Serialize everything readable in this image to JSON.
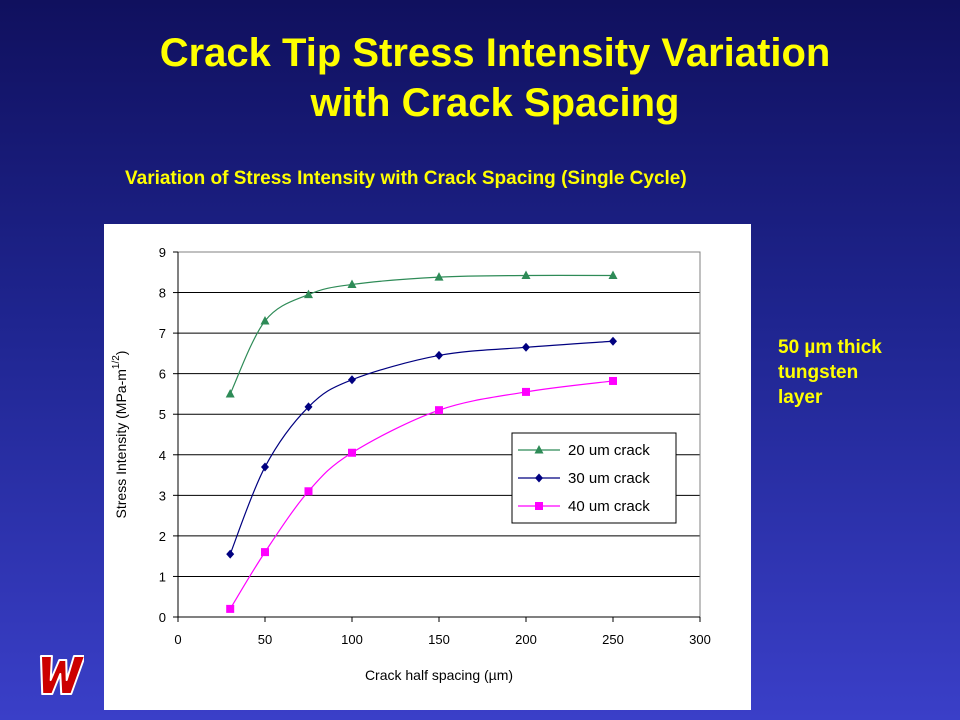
{
  "slide": {
    "title_line1": "Crack Tip Stress Intensity Variation",
    "title_line2": "with Crack Spacing",
    "chart_heading": "Variation of Stress Intensity with Crack Spacing (Single Cycle)",
    "side_note": [
      "50 µm thick",
      "tungsten",
      "layer"
    ],
    "logo_text": "W",
    "colors": {
      "background": "#2a2fa8",
      "title": "#ffff00",
      "logo": "#cc0000"
    }
  },
  "chart_data": {
    "type": "line",
    "title": "",
    "xlabel": "Crack half spacing (µm)",
    "ylabel": "Stress Intensity (MPa-m",
    "ylabel_sup": "1/2",
    "ylabel_end": ")",
    "xlim": [
      0,
      300
    ],
    "ylim": [
      0,
      9
    ],
    "x_ticks": [
      0,
      50,
      100,
      150,
      200,
      250,
      300
    ],
    "y_ticks": [
      0,
      1,
      2,
      3,
      4,
      5,
      6,
      7,
      8,
      9
    ],
    "grid": "horizontal",
    "legend_position": "bottom-right",
    "x": [
      30,
      50,
      75,
      100,
      150,
      200,
      250
    ],
    "series": [
      {
        "name": "20 um crack",
        "color": "#2e8b57",
        "marker": "triangle",
        "values": [
          5.5,
          7.3,
          7.95,
          8.2,
          8.38,
          8.42,
          8.42
        ]
      },
      {
        "name": "30 um crack",
        "color": "#000080",
        "marker": "diamond",
        "values": [
          1.55,
          3.7,
          5.18,
          5.85,
          6.45,
          6.65,
          6.8
        ]
      },
      {
        "name": "40 um crack",
        "color": "#ff00ff",
        "marker": "square",
        "values": [
          0.2,
          1.6,
          3.1,
          4.05,
          5.1,
          5.55,
          5.82
        ]
      }
    ]
  }
}
